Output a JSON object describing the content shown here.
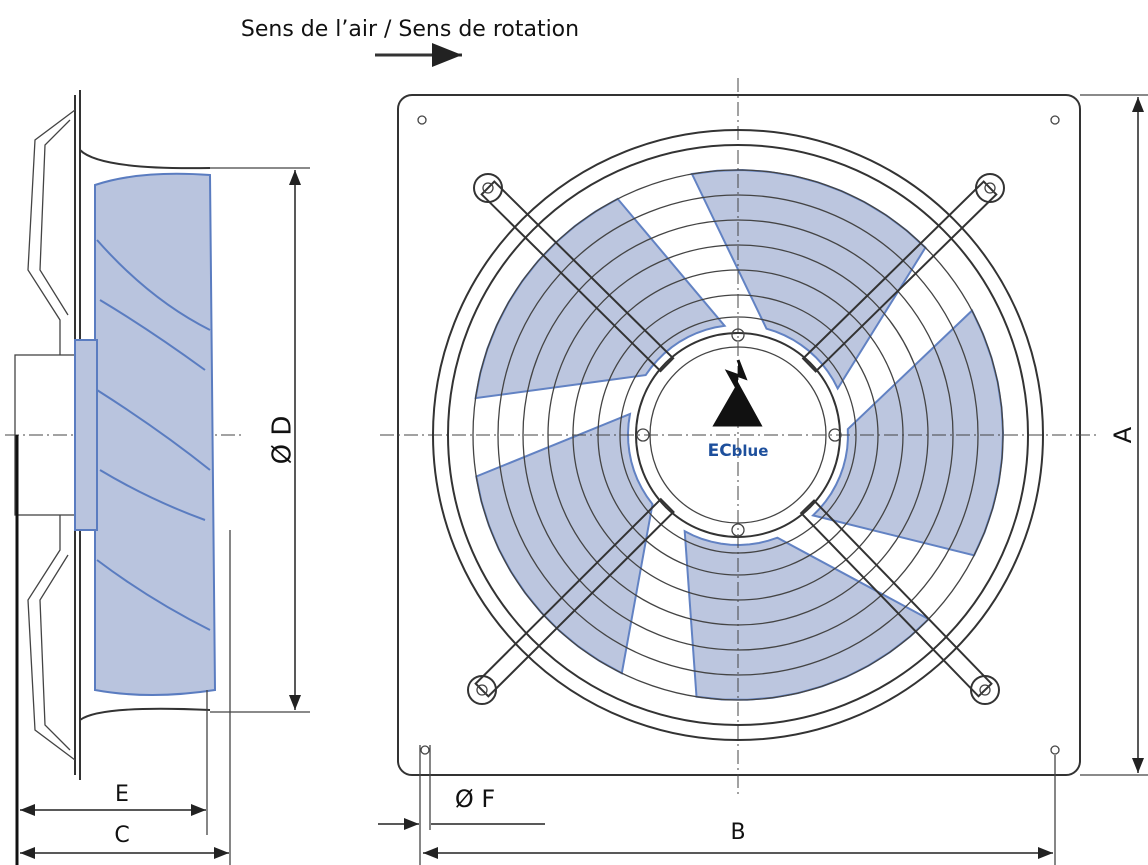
{
  "header": {
    "title": "Sens de l’air / Sens de rotation"
  },
  "logo": {
    "ec": "EC",
    "blue": "blue"
  },
  "dimensions": {
    "a": "A",
    "b": "B",
    "c": "C",
    "d": "Ø D",
    "e": "E",
    "f": "Ø F"
  }
}
